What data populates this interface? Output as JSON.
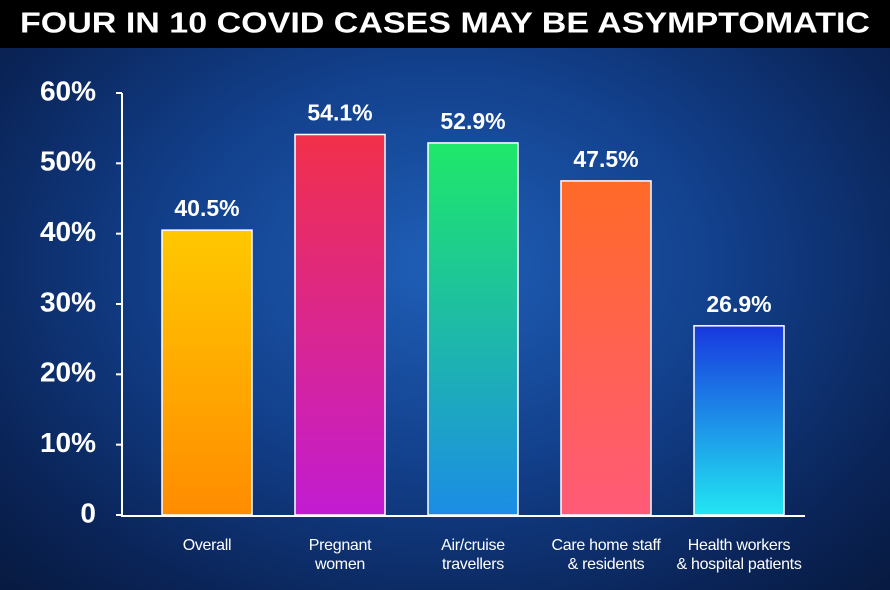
{
  "chart_data": {
    "type": "bar",
    "title": "FOUR IN 10 COVID CASES MAY BE ASYMPTOMATIC",
    "categories": [
      "Overall",
      "Pregnant\nwomen",
      "Air/cruise\ntravellers",
      "Care home staff\n& residents",
      "Health workers\n& hospital patients"
    ],
    "values": [
      40.5,
      54.1,
      52.9,
      47.5,
      26.9
    ],
    "value_labels": [
      "40.5%",
      "54.1%",
      "52.9%",
      "47.5%",
      "26.9%"
    ],
    "colors": [
      [
        "#ffc800",
        "#ff8c00"
      ],
      [
        "#f2304a",
        "#c21cd2"
      ],
      [
        "#1fe86a",
        "#1c8ce6"
      ],
      [
        "#ff6a28",
        "#ff5a78"
      ],
      [
        "#1838de",
        "#22e6f2"
      ]
    ],
    "ylim": [
      0,
      60
    ],
    "yticks": [
      0,
      {
        "value": 10,
        "label": "10%"
      },
      {
        "value": 20,
        "label": "20%"
      },
      {
        "value": 30,
        "label": "30%"
      },
      {
        "value": 40,
        "label": "40%"
      },
      {
        "value": 50,
        "label": "50%"
      },
      {
        "value": 60,
        "label": "60%"
      }
    ],
    "grid": false
  }
}
